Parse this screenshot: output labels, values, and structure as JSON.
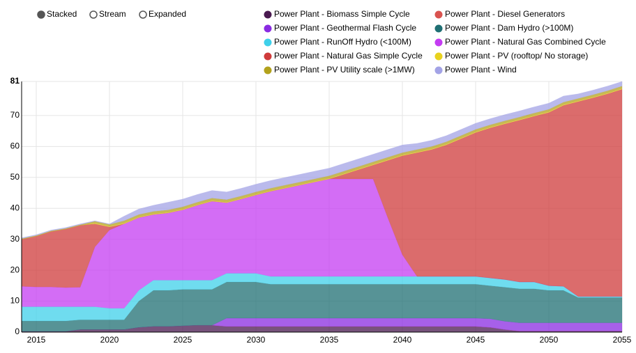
{
  "chart_data": {
    "type": "stacked-area",
    "controls": [
      "Stacked",
      "Stream",
      "Expanded"
    ],
    "x": [
      2014,
      2015,
      2016,
      2017,
      2018,
      2019,
      2020,
      2021,
      2022,
      2023,
      2024,
      2025,
      2026,
      2027,
      2028,
      2029,
      2030,
      2031,
      2032,
      2033,
      2034,
      2035,
      2036,
      2037,
      2038,
      2039,
      2040,
      2041,
      2042,
      2043,
      2044,
      2045,
      2046,
      2047,
      2048,
      2049,
      2050,
      2051,
      2052,
      2053,
      2054,
      2055
    ],
    "xlim": [
      2014,
      2055
    ],
    "xticks": [
      2015,
      2020,
      2025,
      2030,
      2035,
      2040,
      2045,
      2050,
      2055
    ],
    "ylim": [
      0,
      81
    ],
    "yticks": [
      0,
      10,
      20,
      30,
      40,
      50,
      60,
      70,
      81
    ],
    "grid": true,
    "series": [
      {
        "name": "Power Plant - Biomass Simple Cycle",
        "color": "#4a1a50",
        "values": [
          0.2,
          0.2,
          0.2,
          0.2,
          0.8,
          0.8,
          0.8,
          0.8,
          1.5,
          1.8,
          1.8,
          2,
          2.2,
          2.2,
          1.8,
          1.8,
          1.8,
          1.8,
          1.8,
          1.8,
          1.8,
          1.8,
          1.8,
          1.8,
          1.8,
          1.8,
          1.8,
          1.8,
          1.8,
          1.8,
          1.8,
          1.8,
          1.5,
          0.8,
          0.3,
          0.3,
          0.3,
          0.3,
          0.3,
          0.3,
          0.3,
          0.3
        ]
      },
      {
        "name": "Power Plant - Diesel Generators",
        "color": "#d9534f",
        "values": [
          0,
          0,
          0,
          0,
          0,
          0,
          0,
          0,
          0,
          0,
          0,
          0,
          0,
          0,
          0,
          0,
          0,
          0,
          0,
          0,
          0,
          0,
          0,
          0,
          0,
          0,
          0,
          0,
          0,
          0,
          0,
          0,
          0,
          0,
          0,
          0,
          0,
          0,
          0,
          0,
          0,
          0
        ]
      },
      {
        "name": "Power Plant - Geothermal Flash Cycle",
        "color": "#8a2be2",
        "values": [
          0,
          0,
          0,
          0,
          0,
          0,
          0,
          0,
          0,
          0,
          0,
          0,
          0,
          0,
          2.7,
          2.7,
          2.7,
          2.7,
          2.7,
          2.7,
          2.7,
          2.7,
          2.7,
          2.7,
          2.7,
          2.7,
          2.7,
          2.7,
          2.7,
          2.7,
          2.7,
          2.7,
          2.8,
          2.7,
          2.7,
          2.7,
          2.7,
          2.7,
          2.7,
          2.7,
          2.7,
          2.7
        ]
      },
      {
        "name": "Power Plant - Dam Hydro (>100M)",
        "color": "#1f6f73",
        "values": [
          3.4,
          3.4,
          3.4,
          3.4,
          3.2,
          3.2,
          3.2,
          3.2,
          8.5,
          11.7,
          11.7,
          11.8,
          11.6,
          11.6,
          11.7,
          11.7,
          11.7,
          11,
          11,
          11,
          11,
          11,
          11,
          11,
          11,
          11,
          11,
          11,
          11,
          11,
          11,
          11,
          10.7,
          11,
          11,
          11,
          10.5,
          10.5,
          8.2,
          8.2,
          8.2,
          8.2
        ]
      },
      {
        "name": "Power Plant - RunOff Hydro (<100M)",
        "color": "#3fd0ea",
        "values": [
          4.6,
          4.6,
          4.6,
          4.6,
          4.2,
          4.2,
          3.7,
          3.7,
          3.5,
          3.3,
          3.3,
          3,
          3,
          3,
          2.8,
          2.8,
          2.8,
          2.5,
          2.5,
          2.5,
          2.5,
          2.5,
          2.5,
          2.5,
          2.5,
          2.5,
          2.5,
          2.5,
          2.5,
          2.5,
          2.5,
          2.5,
          2.5,
          2.5,
          2.2,
          2.2,
          1.5,
          1.3,
          0.3,
          0.3,
          0.3,
          0.3
        ]
      },
      {
        "name": "Power Plant - Natural Gas Combined Cycle",
        "color": "#c43cf2",
        "values": [
          6.6,
          6.4,
          6.4,
          6.2,
          6.3,
          19.3,
          25.3,
          27.3,
          23.5,
          21.2,
          21.7,
          22.7,
          24.2,
          25.5,
          22.8,
          24,
          25.3,
          27.5,
          28.5,
          29.5,
          30.5,
          31.5,
          31.5,
          31.5,
          31.5,
          19,
          7,
          0,
          0,
          0,
          0,
          0,
          0,
          0,
          0,
          0,
          0,
          0,
          0,
          0,
          0,
          0
        ]
      },
      {
        "name": "Power Plant - Natural Gas Simple Cycle",
        "color": "#cf3b3b",
        "values": [
          15.2,
          16.4,
          17.9,
          18.9,
          20,
          7.5,
          1,
          0,
          0,
          0,
          0,
          0,
          0,
          0,
          0,
          0,
          0,
          0,
          0,
          0,
          0,
          0,
          1.5,
          3,
          4.5,
          18.5,
          32,
          40,
          41,
          42.5,
          44.5,
          46.5,
          48.5,
          50.3,
          52.3,
          53.6,
          56,
          58.5,
          63,
          64.2,
          65.5,
          67
        ]
      },
      {
        "name": "Power Plant - PV (rooftop/ No storage)",
        "color": "#e8d21e",
        "values": [
          0,
          0,
          0,
          0,
          0,
          0.2,
          0.2,
          0.2,
          0.2,
          0.2,
          0.2,
          0.2,
          0.2,
          0.2,
          0.2,
          0.2,
          0.2,
          0.2,
          0.2,
          0.2,
          0.2,
          0.2,
          0.2,
          0.2,
          0.2,
          0.2,
          0.2,
          0.2,
          0.2,
          0.2,
          0.2,
          0.2,
          0.2,
          0.2,
          0.2,
          0.2,
          0.2,
          0.2,
          0.2,
          0.2,
          0.2,
          0.2
        ]
      },
      {
        "name": "Power Plant - PV Utility scale (>1MW)",
        "color": "#b3a21c",
        "values": [
          0.2,
          0.2,
          0.2,
          0.2,
          0.2,
          0.6,
          0.6,
          0.8,
          0.8,
          0.8,
          0.8,
          0.8,
          0.8,
          0.8,
          0.8,
          0.8,
          0.8,
          0.8,
          0.8,
          0.8,
          0.8,
          0.8,
          0.8,
          0.8,
          0.8,
          0.8,
          0.8,
          0.8,
          0.8,
          0.8,
          0.8,
          0.8,
          0.8,
          0.8,
          0.8,
          0.8,
          0.8,
          0.8,
          0.8,
          0.8,
          0.8,
          0.8
        ]
      },
      {
        "name": "Power Plant - Wind",
        "color": "#a3a3e6",
        "values": [
          0.3,
          0.3,
          0.3,
          0.3,
          0.3,
          0.2,
          0.2,
          1.5,
          1.8,
          2,
          2.5,
          2.5,
          2.5,
          2.5,
          2.5,
          2.5,
          2.5,
          2.5,
          2.5,
          2.5,
          2.5,
          2.5,
          2.5,
          2.5,
          2.5,
          2.5,
          2.5,
          2,
          2,
          2,
          2,
          2,
          2,
          2,
          2,
          2,
          2,
          2,
          1.5,
          1.5,
          1.5,
          1.5
        ]
      }
    ]
  }
}
